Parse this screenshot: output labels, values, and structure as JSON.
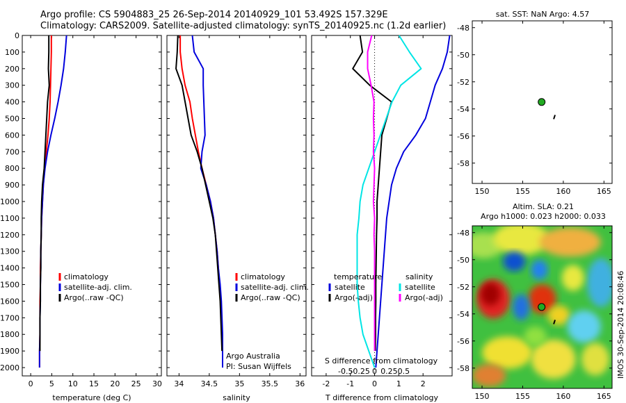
{
  "header": {
    "title_line1": "Argo profile: CS 5904883_25 26-Sep-2014 20140929_101 53.492S 157.329E",
    "title_line2": "Climatology: CARS2009. Satellite-adjusted climatology: synTS_20140925.nc (1.2d earlier)"
  },
  "side_label": "IMOS 30-Sep-2014 20:08:46",
  "colors": {
    "climatology": "#ff0000",
    "satellite": "#0000dd",
    "argo": "#000000",
    "sal_satellite": "#00e5e5",
    "sal_argo": "#ff00ff",
    "station": "#22aa22"
  },
  "chart_data": [
    {
      "id": "temperature",
      "type": "line",
      "xlabel": "temperature (deg C)",
      "xlim": [
        -2,
        31
      ],
      "ylim": [
        2050,
        0
      ],
      "xticks": [
        0,
        5,
        10,
        15,
        20,
        25,
        30
      ],
      "xtick_labels": [
        "0",
        "5",
        "10",
        "15",
        "20",
        "25",
        "30"
      ],
      "yticks": [
        0,
        100,
        200,
        300,
        400,
        500,
        600,
        700,
        800,
        900,
        1000,
        1100,
        1200,
        1300,
        1400,
        1500,
        1600,
        1700,
        1800,
        1900,
        2000
      ],
      "ytick_labels": [
        "0",
        "100",
        "200",
        "300",
        "400",
        "500",
        "600",
        "700",
        "800",
        "900",
        "1000",
        "1100",
        "1200",
        "1300",
        "1400",
        "1500",
        "1600",
        "1700",
        "1800",
        "1900",
        "2000"
      ],
      "legend": [
        "climatology",
        "satellite-adj. clim.",
        "Argo(..raw -QC)"
      ],
      "legend_position": "middle-right",
      "series": [
        {
          "name": "climatology",
          "color": "#ff0000",
          "x": [
            4.9,
            4.9,
            4.8,
            4.7,
            4.6,
            4.4,
            4.1,
            3.7,
            3.3,
            3.0,
            2.8,
            2.6,
            2.5,
            2.4,
            2.3,
            2.3,
            2.2,
            2.2,
            2.2,
            2.1,
            2.1
          ],
          "y": [
            0,
            100,
            200,
            300,
            400,
            500,
            600,
            700,
            800,
            900,
            1000,
            1100,
            1200,
            1300,
            1400,
            1500,
            1600,
            1700,
            1800,
            1900,
            2000
          ]
        },
        {
          "name": "satellite-adj. clim.",
          "color": "#0000dd",
          "x": [
            8.5,
            8.2,
            7.8,
            7.2,
            6.5,
            5.7,
            4.8,
            4.0,
            3.4,
            3.0,
            2.8,
            2.6,
            2.5,
            2.4,
            2.4,
            2.3,
            2.3,
            2.2,
            2.2,
            2.1,
            2.1
          ],
          "y": [
            0,
            100,
            200,
            300,
            400,
            500,
            600,
            700,
            800,
            900,
            1000,
            1100,
            1200,
            1300,
            1400,
            1500,
            1600,
            1700,
            1800,
            1900,
            2000
          ]
        },
        {
          "name": "Argo(..raw -QC)",
          "color": "#000000",
          "x": [
            4.3,
            4.3,
            4.2,
            4.4,
            4.0,
            3.8,
            3.6,
            3.4,
            3.2,
            2.8,
            2.6,
            2.5,
            2.5,
            2.4,
            2.4,
            2.3,
            2.3,
            2.2,
            2.2,
            2.2
          ],
          "y": [
            0,
            100,
            200,
            300,
            400,
            500,
            600,
            700,
            800,
            900,
            1000,
            1100,
            1200,
            1300,
            1400,
            1500,
            1600,
            1700,
            1800,
            1900
          ]
        }
      ]
    },
    {
      "id": "salinity",
      "type": "line",
      "xlabel": "salinity",
      "xlim": [
        33.8,
        36.1
      ],
      "ylim": [
        2050,
        0
      ],
      "xticks": [
        34,
        34.5,
        35,
        35.5,
        36
      ],
      "xtick_labels": [
        "34",
        "34.5",
        "35",
        "35.5",
        "36"
      ],
      "legend": [
        "climatology",
        "satellite-adj. clim.",
        "Argo(..raw -QC)"
      ],
      "legend_position": "middle-right",
      "annotation_lines": [
        "Argo Australia",
        "PI: Susan Wijffels"
      ],
      "series": [
        {
          "name": "climatology",
          "color": "#ff0000",
          "x": [
            34.02,
            34.02,
            34.05,
            34.1,
            34.18,
            34.22,
            34.27,
            34.32,
            34.38,
            34.45,
            34.52,
            34.57,
            34.6,
            34.63,
            34.65,
            34.67,
            34.69,
            34.7,
            34.71,
            34.72,
            34.72
          ],
          "y": [
            0,
            100,
            200,
            300,
            400,
            500,
            600,
            700,
            800,
            900,
            1000,
            1100,
            1200,
            1300,
            1400,
            1500,
            1600,
            1700,
            1800,
            1900,
            2000
          ]
        },
        {
          "name": "satellite-adj. clim.",
          "color": "#0000dd",
          "x": [
            34.22,
            34.25,
            34.4,
            34.4,
            34.41,
            34.42,
            34.43,
            34.38,
            34.36,
            34.45,
            34.52,
            34.57,
            34.6,
            34.63,
            34.65,
            34.68,
            34.7,
            34.71,
            34.72,
            34.72,
            34.72
          ],
          "y": [
            0,
            100,
            200,
            300,
            400,
            500,
            600,
            700,
            800,
            900,
            1000,
            1100,
            1200,
            1300,
            1400,
            1500,
            1600,
            1700,
            1800,
            1900,
            2000
          ]
        },
        {
          "name": "Argo(..raw -QC)",
          "color": "#000000",
          "x": [
            33.98,
            33.97,
            33.95,
            34.05,
            34.1,
            34.15,
            34.2,
            34.3,
            34.38,
            34.44,
            34.5,
            34.56,
            34.6,
            34.62,
            34.64,
            34.66,
            34.68,
            34.69,
            34.7,
            34.71
          ],
          "y": [
            0,
            100,
            200,
            300,
            400,
            500,
            600,
            700,
            800,
            900,
            1000,
            1100,
            1200,
            1300,
            1400,
            1500,
            1600,
            1700,
            1800,
            1900
          ]
        }
      ]
    },
    {
      "id": "differences",
      "type": "line",
      "xlabel": "T difference from climatology",
      "top_label": "S difference from climatology",
      "xlim": [
        -2.6,
        3.2
      ],
      "ylim": [
        2050,
        0
      ],
      "xticks": [
        -2,
        -1,
        0,
        1,
        2
      ],
      "xtick_labels": [
        "-2",
        "-1",
        "0",
        "1",
        "2"
      ],
      "sticks": [
        -0.5,
        -0.25,
        0,
        0.25,
        0.5
      ],
      "stick_labels": [
        "-0.5",
        "-0.25",
        "0",
        "0.25",
        "0.5"
      ],
      "legend_left_title": "temperature",
      "legend_right_title": "salinity",
      "legend_left": [
        "satellite",
        "Argo(-adj)"
      ],
      "legend_right": [
        "satellite",
        "Argo(-adj)"
      ],
      "series": [
        {
          "name": "T satellite",
          "color": "#0000dd",
          "x": [
            3.1,
            3.0,
            2.8,
            2.5,
            2.3,
            2.1,
            1.7,
            1.2,
            0.9,
            0.7,
            0.6,
            0.5,
            0.45,
            0.4,
            0.35,
            0.3,
            0.25,
            0.2,
            0.15,
            0.1,
            0.05
          ],
          "y": [
            0,
            100,
            200,
            300,
            400,
            500,
            600,
            700,
            800,
            900,
            1000,
            1100,
            1200,
            1300,
            1400,
            1500,
            1600,
            1700,
            1800,
            1900,
            2000
          ]
        },
        {
          "name": "T Argo(-adj)",
          "color": "#000000",
          "x": [
            -0.6,
            -0.5,
            -0.9,
            -0.2,
            0.7,
            0.5,
            0.3,
            0.25,
            0.2,
            0.15,
            0.1,
            0.1,
            0.08,
            0.07,
            0.06,
            0.05,
            0.05,
            0.04,
            0.04,
            0.03
          ],
          "y": [
            0,
            100,
            200,
            300,
            400,
            500,
            600,
            700,
            800,
            900,
            1000,
            1100,
            1200,
            1300,
            1400,
            1500,
            1600,
            1700,
            1800,
            1900
          ]
        },
        {
          "name": "S satellite",
          "color": "#00e5e5",
          "x": [
            0.42,
            0.6,
            0.8,
            0.45,
            0.3,
            0.2,
            0.1,
            0.0,
            -0.1,
            -0.2,
            -0.25,
            -0.27,
            -0.3,
            -0.3,
            -0.3,
            -0.3,
            -0.28,
            -0.25,
            -0.2,
            -0.1,
            0.0
          ],
          "y": [
            0,
            100,
            200,
            300,
            400,
            500,
            600,
            700,
            800,
            900,
            1000,
            1100,
            1200,
            1300,
            1400,
            1500,
            1600,
            1700,
            1800,
            1900,
            2000
          ]
        },
        {
          "name": "S Argo(-adj)",
          "color": "#ff00ff",
          "x": [
            -0.05,
            -0.12,
            -0.12,
            -0.06,
            -0.01,
            -0.02,
            -0.01,
            -0.02,
            0.0,
            -0.01,
            -0.02,
            0.0,
            -0.01,
            0.0,
            0.0,
            0.0,
            0.0,
            0.0,
            0.0,
            0.0
          ],
          "y": [
            0,
            100,
            200,
            300,
            400,
            500,
            600,
            700,
            800,
            900,
            1000,
            1100,
            1200,
            1300,
            1400,
            1500,
            1600,
            1700,
            1800,
            1900
          ]
        }
      ]
    },
    {
      "id": "sst_map",
      "type": "scatter",
      "title": "sat. SST: NaN Argo: 4.57",
      "xlim": [
        148.8,
        166
      ],
      "ylim": [
        -59.5,
        -47.5
      ],
      "xticks": [
        150,
        155,
        160,
        165
      ],
      "xtick_labels": [
        "150",
        "155",
        "160",
        "165"
      ],
      "yticks": [
        -48,
        -50,
        -52,
        -54,
        -56,
        -58
      ],
      "ytick_labels": [
        "-48",
        "-50",
        "-52",
        "-54",
        "-56",
        "-58"
      ],
      "points": [
        {
          "lon": 157.33,
          "lat": -53.49
        }
      ],
      "land": [
        {
          "lon": 158.9,
          "lat": -54.6
        }
      ]
    },
    {
      "id": "sla_map",
      "type": "heatmap",
      "title_line1": "Altim. SLA: 0.21",
      "title_line2": "Argo h1000: 0.023 h2000: 0.033",
      "xlim": [
        148.8,
        166
      ],
      "ylim": [
        -59.5,
        -47.5
      ],
      "xticks": [
        150,
        155,
        160,
        165
      ],
      "xtick_labels": [
        "150",
        "155",
        "160",
        "165"
      ],
      "yticks": [
        -48,
        -50,
        -52,
        -54,
        -56,
        -58
      ],
      "ytick_labels": [
        "-48",
        "-50",
        "-52",
        "-54",
        "-56",
        "-58"
      ],
      "points": [
        {
          "lon": 157.33,
          "lat": -53.49
        }
      ],
      "land": [
        {
          "lon": 158.9,
          "lat": -54.6
        }
      ]
    }
  ]
}
